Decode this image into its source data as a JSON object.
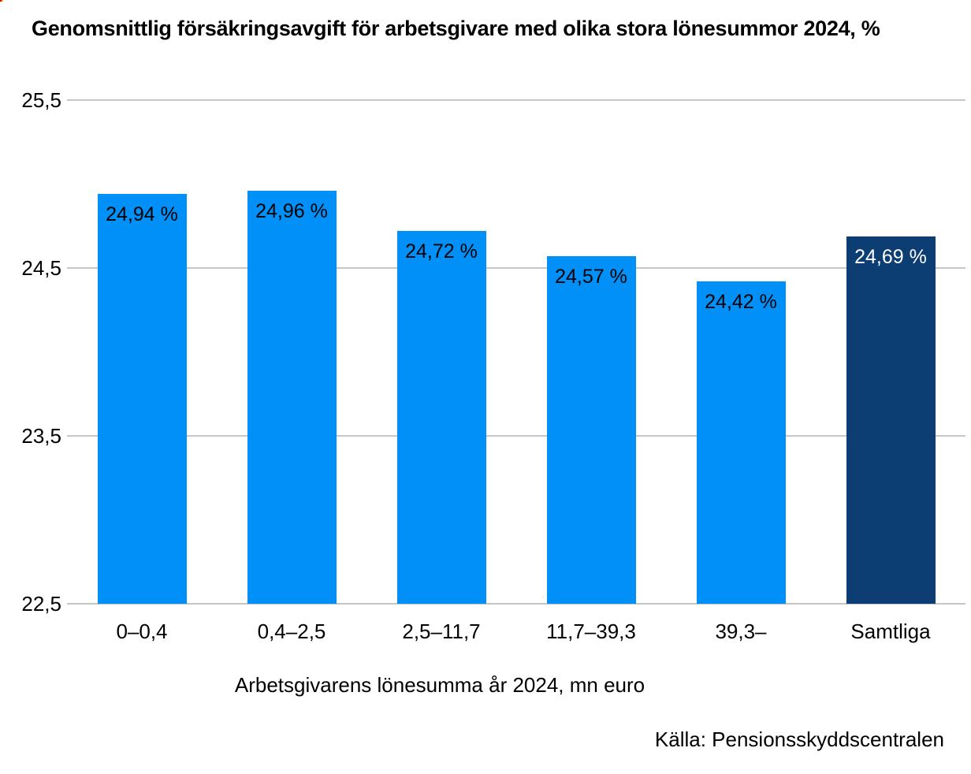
{
  "title": "Genomsnittlig försäkringsavgift för arbetsgivare med olika stora lönesummor 2024, %",
  "chart_data": {
    "type": "bar",
    "categories": [
      "0–0,4",
      "0,4–2,5",
      "2,5–11,7",
      "11,7–39,3",
      "39,3–",
      "Samtliga"
    ],
    "values": [
      24.94,
      24.96,
      24.72,
      24.57,
      24.42,
      24.69
    ],
    "value_labels": [
      "24,94 %",
      "24,96 %",
      "24,72 %",
      "24,57 %",
      "24,42 %",
      "24,69 %"
    ],
    "ylim": [
      22.5,
      25.5
    ],
    "yticks": [
      {
        "value": 25.5,
        "label": "25,5"
      },
      {
        "value": 24.5,
        "label": "24,5"
      },
      {
        "value": 23.5,
        "label": "23,5"
      },
      {
        "value": 22.5,
        "label": "22,5"
      }
    ],
    "grid": true,
    "legend": "none",
    "xlabel": "Arbetsgivarens lönesumma år 2024, mn euro",
    "ylabel": "",
    "bar_color": "#0090f8",
    "highlight_color": "#0d3e73",
    "highlight_index": 5,
    "label_color": "#000000",
    "highlight_label_color": "#ffffff",
    "gridline_color": "#c6c6c6"
  },
  "source": "Källa: Pensionsskyddscentralen"
}
